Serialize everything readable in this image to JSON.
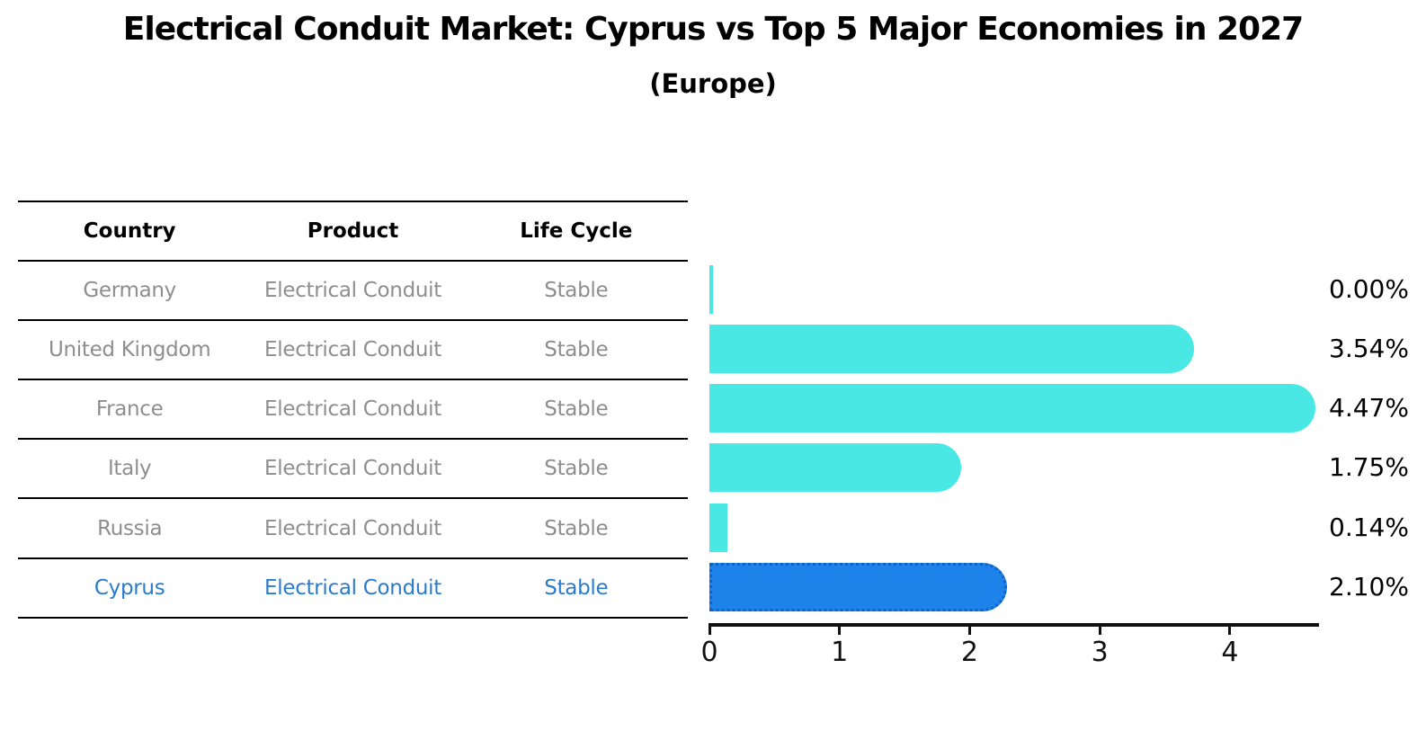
{
  "page": {
    "title": "Electrical Conduit Market: Cyprus vs Top 5 Major Economies in 2027",
    "subtitle": "(Europe)"
  },
  "table": {
    "headers": [
      "Country",
      "Product",
      "Life Cycle"
    ],
    "rows": [
      {
        "country": "Germany",
        "product": "Electrical Conduit",
        "life_cycle": "Stable",
        "highlighted": false
      },
      {
        "country": "United Kingdom",
        "product": "Electrical Conduit",
        "life_cycle": "Stable",
        "highlighted": false
      },
      {
        "country": "France",
        "product": "Electrical Conduit",
        "life_cycle": "Stable",
        "highlighted": false
      },
      {
        "country": "Italy",
        "product": "Electrical Conduit",
        "life_cycle": "Stable",
        "highlighted": false
      },
      {
        "country": "Russia",
        "product": "Electrical Conduit",
        "life_cycle": "Stable",
        "highlighted": false
      },
      {
        "country": "Cyprus",
        "product": "Electrical Conduit",
        "life_cycle": "Stable",
        "highlighted": true
      }
    ]
  },
  "chart_data": {
    "type": "bar",
    "orientation": "horizontal",
    "title": "Electrical Conduit Market: Cyprus vs Top 5 Major Economies in 2027",
    "subtitle": "(Europe)",
    "categories": [
      "Germany",
      "United Kingdom",
      "France",
      "Italy",
      "Russia",
      "Cyprus"
    ],
    "values": [
      0.0,
      3.54,
      4.47,
      1.75,
      0.14,
      2.1
    ],
    "value_labels": [
      "0.00%",
      "3.54%",
      "4.47%",
      "1.75%",
      "0.14%",
      "2.10%"
    ],
    "x_ticks": [
      0,
      1,
      2,
      3,
      4
    ],
    "xlim": [
      0,
      4.7
    ],
    "xlabel": "",
    "ylabel": "",
    "grid": false,
    "legend": false,
    "bar_color": "#4AE8E4",
    "highlight_index": 5,
    "highlight_category": "Cyprus",
    "highlight_bar_color": "#1E82EB",
    "highlight_border_color": "#0E63C8"
  },
  "colors": {
    "row_text": "#8E8E8E",
    "highlight_text": "#2B7BCC",
    "axis": "#111111"
  }
}
